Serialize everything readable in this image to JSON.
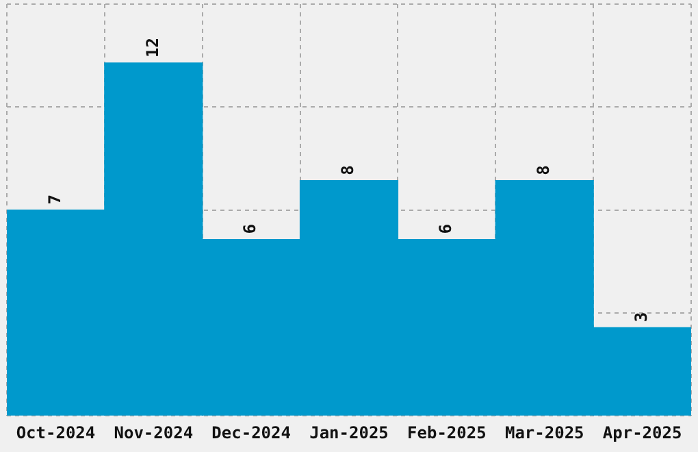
{
  "chart_data": {
    "type": "bar",
    "categories": [
      "Oct-2024",
      "Nov-2024",
      "Dec-2024",
      "Jan-2025",
      "Feb-2025",
      "Mar-2025",
      "Apr-2025"
    ],
    "values": [
      7,
      12,
      6,
      8,
      6,
      8,
      3
    ],
    "color": "#0099cc",
    "data_labels": true,
    "grid": true,
    "tick_labels": "x"
  }
}
